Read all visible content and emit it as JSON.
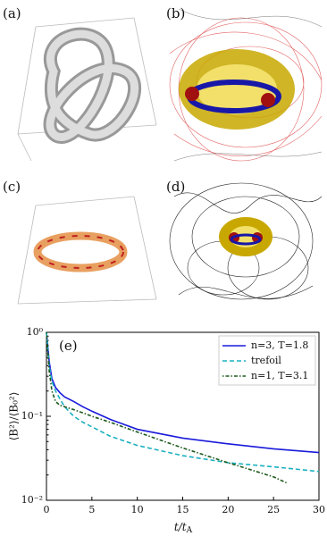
{
  "panels": [
    {
      "label": "(a)"
    },
    {
      "label": "(b)"
    },
    {
      "label": "(c)"
    },
    {
      "label": "(d)"
    }
  ],
  "chart_data": {
    "type": "line",
    "panel_label": "(e)",
    "xlabel": {
      "main": "t/t",
      "sub": "A"
    },
    "ylabel": "⟨B²⟩/⟨B₀²⟩",
    "xlim": [
      0,
      30
    ],
    "xticks": [
      0,
      5,
      10,
      15,
      20,
      25,
      30
    ],
    "ylim": [
      0.01,
      1
    ],
    "log_y": true,
    "yticks": [
      {
        "value": 1,
        "label": "10⁰"
      },
      {
        "value": 0.1,
        "label": "10⁻¹"
      },
      {
        "value": 0.01,
        "label": "10⁻²"
      }
    ],
    "legend": "upper right",
    "series": [
      {
        "name": "n=3, T=1.8",
        "color": "#1a1adb",
        "dash": "solid",
        "x": [
          0,
          0.3,
          0.6,
          1,
          1.5,
          2,
          3,
          4,
          5,
          7,
          10,
          15,
          20,
          25,
          30
        ],
        "values": [
          1,
          0.45,
          0.28,
          0.22,
          0.19,
          0.17,
          0.15,
          0.13,
          0.115,
          0.092,
          0.07,
          0.055,
          0.047,
          0.041,
          0.037
        ]
      },
      {
        "name": "trefoil",
        "color": "#1ab0c0",
        "dash": "dashed",
        "x": [
          0,
          0.3,
          0.6,
          1,
          1.5,
          2,
          3,
          4,
          5,
          7,
          10,
          15,
          20,
          25,
          30
        ],
        "values": [
          1,
          0.4,
          0.26,
          0.2,
          0.16,
          0.13,
          0.1,
          0.085,
          0.075,
          0.058,
          0.045,
          0.034,
          0.028,
          0.025,
          0.022
        ]
      },
      {
        "name": "n=1, T=3.1",
        "color": "#1e5a1e",
        "dash": "dashdot",
        "x": [
          0,
          0.3,
          0.6,
          1,
          1.5,
          2,
          3,
          4,
          5,
          7,
          10,
          15,
          20,
          25,
          26.5
        ],
        "values": [
          1,
          0.35,
          0.2,
          0.15,
          0.135,
          0.13,
          0.12,
          0.11,
          0.1,
          0.085,
          0.065,
          0.042,
          0.028,
          0.019,
          0.016
        ]
      }
    ]
  }
}
